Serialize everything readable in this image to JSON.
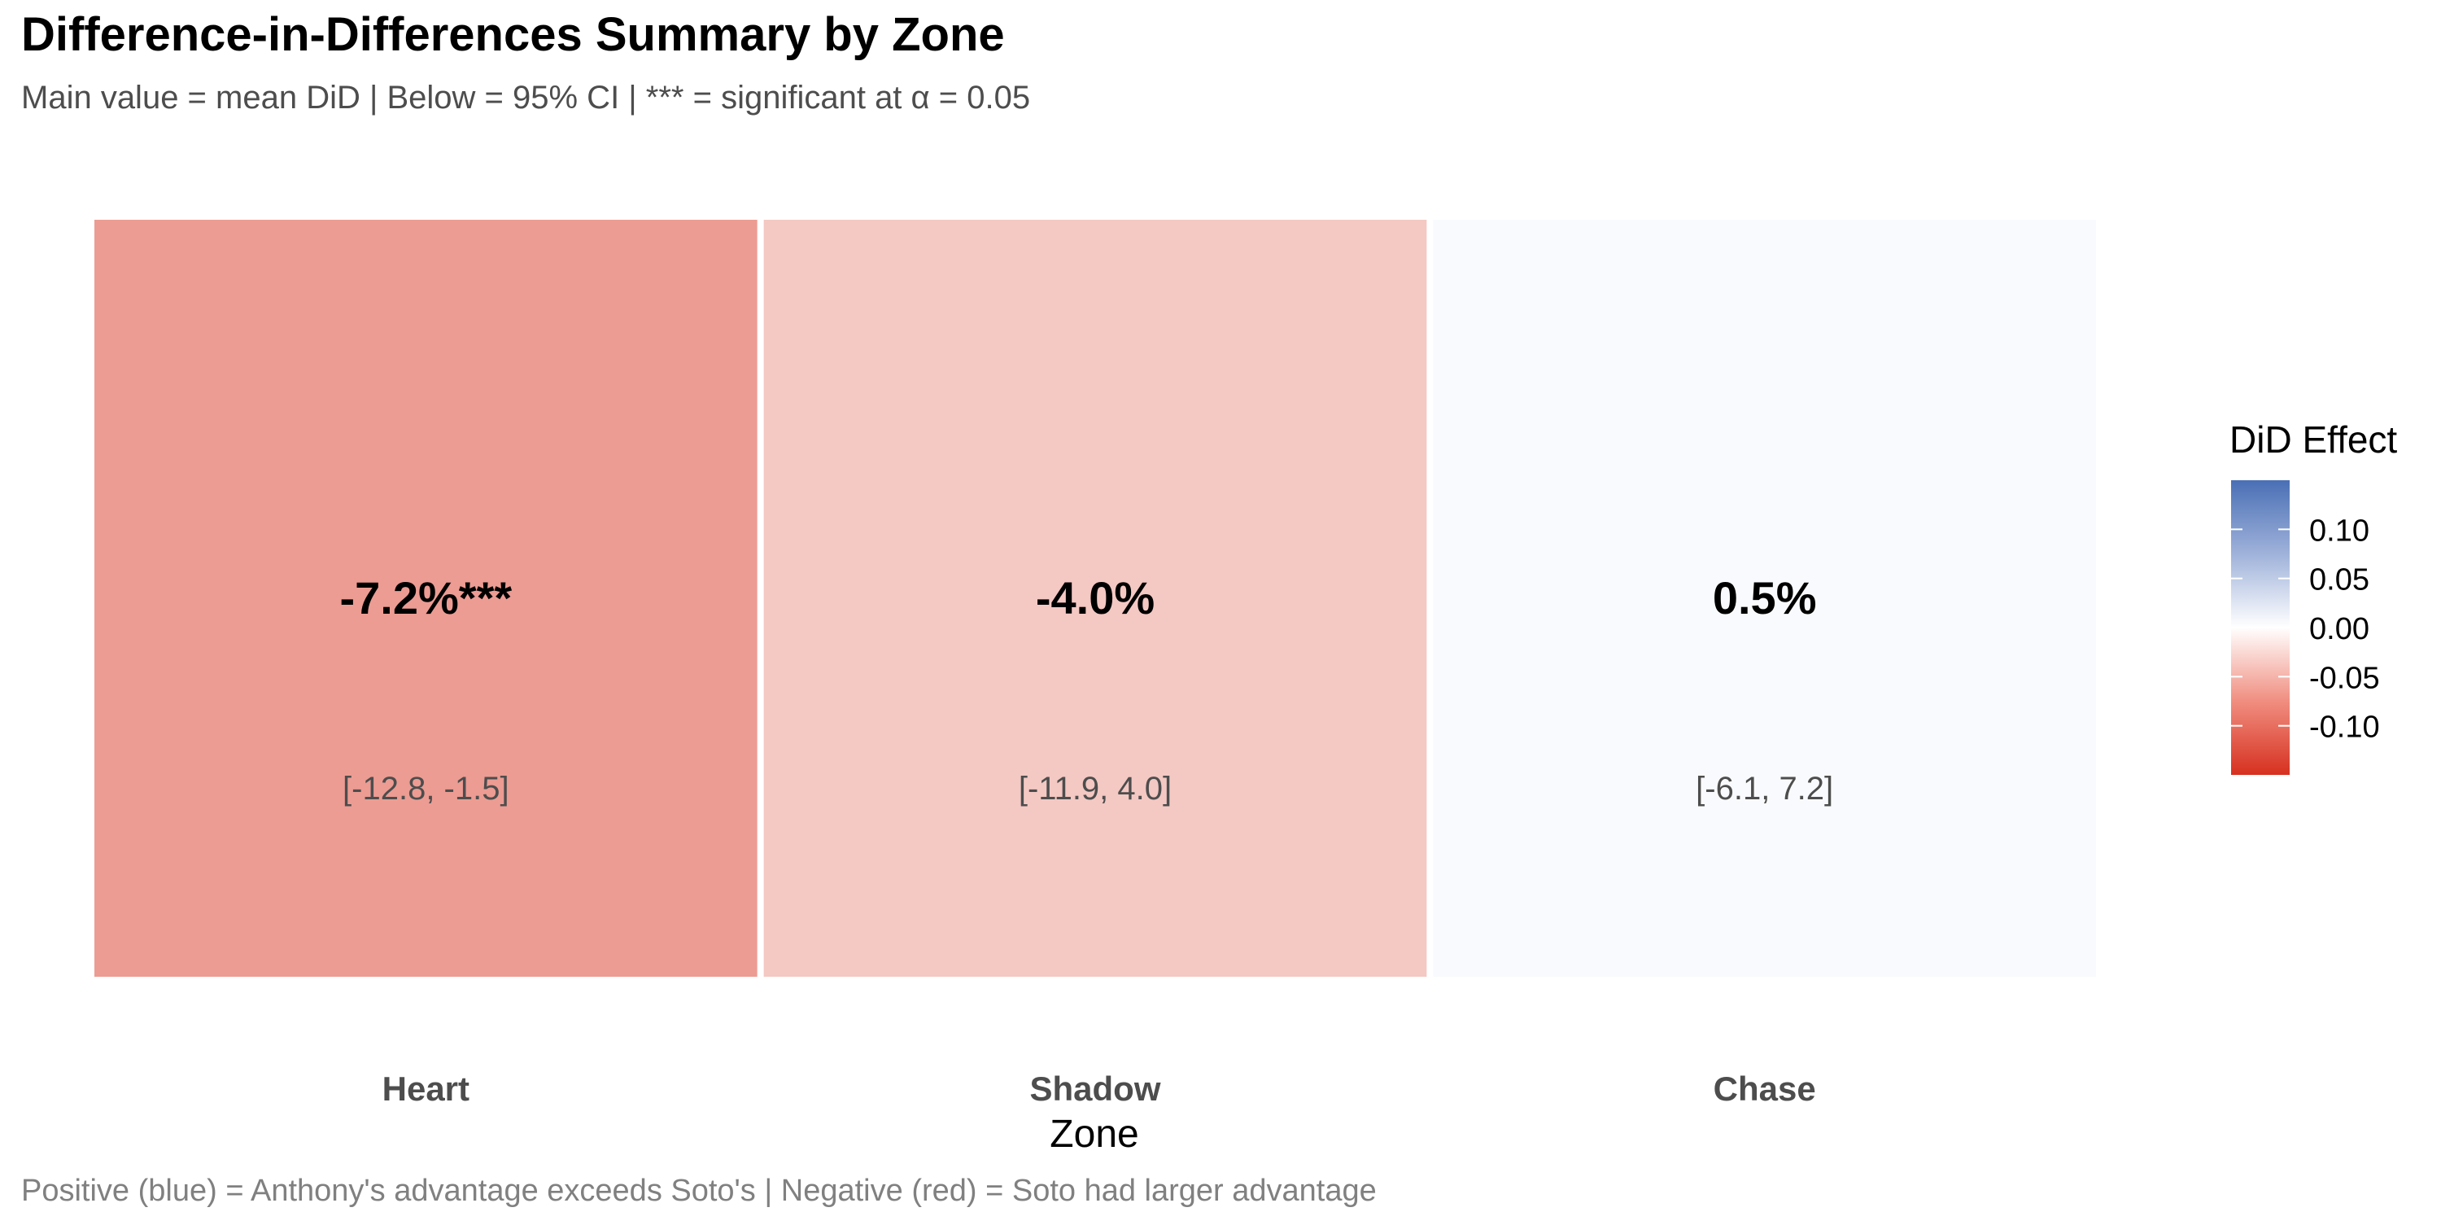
{
  "chart_data": {
    "type": "heatmap",
    "title": "Difference-in-Differences Summary by Zone",
    "subtitle": "Main value = mean DiD | Below = 95% CI | *** = significant at α = 0.05",
    "caption": "Positive (blue) = Anthony's advantage exceeds Soto's | Negative (red) = Soto had larger advantage",
    "xlabel": "Zone",
    "ylabel": "",
    "categories": [
      "Heart",
      "Shadow",
      "Chase"
    ],
    "values": [
      -0.072,
      -0.04,
      0.005
    ],
    "labels": [
      "-7.2%***",
      "-4.0%",
      "0.5%"
    ],
    "ci_labels": [
      "[-12.8, -1.5]",
      "[-11.9, 4.0]",
      "[-6.1, 7.2]"
    ],
    "significant": [
      true,
      false,
      false
    ],
    "legend": {
      "title": "DiD Effect",
      "position": "right",
      "ticks": [
        "0.10",
        "0.05",
        "0.00",
        "-0.05",
        "-0.10"
      ],
      "tick_values": [
        0.1,
        0.05,
        0.0,
        -0.05,
        -0.1
      ],
      "range": [
        -0.15,
        0.15
      ]
    },
    "colors": {
      "negative": "#d7301f",
      "neutral": "#ffffff",
      "positive": "#4a6fb5"
    },
    "grid": false
  }
}
